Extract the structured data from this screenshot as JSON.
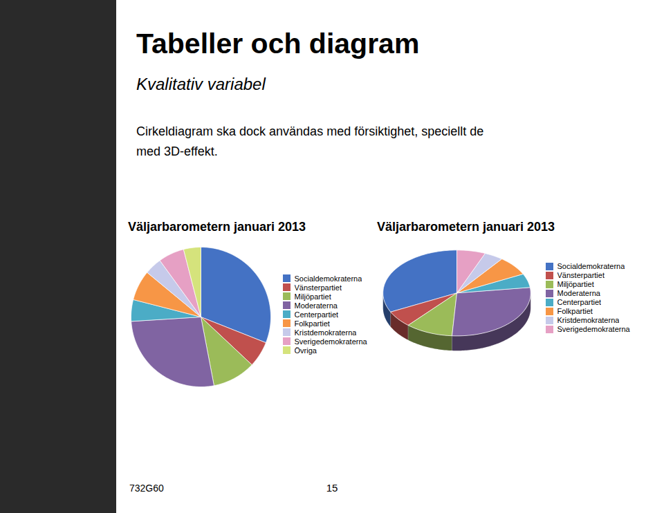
{
  "title": "Tabeller och diagram",
  "subtitle": "Kvalitativ variabel",
  "annotations": [
    "Cirkeldiagram ska dock användas med försiktighet, speciellt de\nmed 3D-effekt.",
    "732G60",
    "15"
  ],
  "chart_data": [
    {
      "type": "pie",
      "title": "Väljarbarometern januari 2013",
      "categories": [
        "Socialdemokraterna",
        "Vänsterpartiet",
        "Miljöpartiet",
        "Moderaterna",
        "Centerpartiet",
        "Folkpartiet",
        "Kristdemokraterna",
        "Sverigedemokraterna",
        "Övriga"
      ],
      "values": [
        31,
        6,
        10,
        27,
        5,
        7,
        4,
        6,
        4
      ],
      "colors": [
        "#4472C4",
        "#C0504D",
        "#9BBB59",
        "#8064A2",
        "#4BACC6",
        "#F79646",
        "#C6CAEA",
        "#E6A0C4",
        "#D5E37C"
      ],
      "legend": "right"
    },
    {
      "type": "pie3d",
      "title": "Väljarbarometern januari 2013",
      "categories": [
        "Socialdemokraterna",
        "Vänsterpartiet",
        "Miljöpartiet",
        "Moderaterna",
        "Centerpartiet",
        "Folkpartiet",
        "Kristdemokraterna",
        "Sverigedemokraterna"
      ],
      "values": [
        31,
        6,
        10,
        27,
        5,
        7,
        4,
        6
      ],
      "colors": [
        "#4472C4",
        "#C0504D",
        "#9BBB59",
        "#8064A2",
        "#4BACC6",
        "#F79646",
        "#C6CAEA",
        "#E6A0C4"
      ],
      "legend": "right"
    }
  ]
}
